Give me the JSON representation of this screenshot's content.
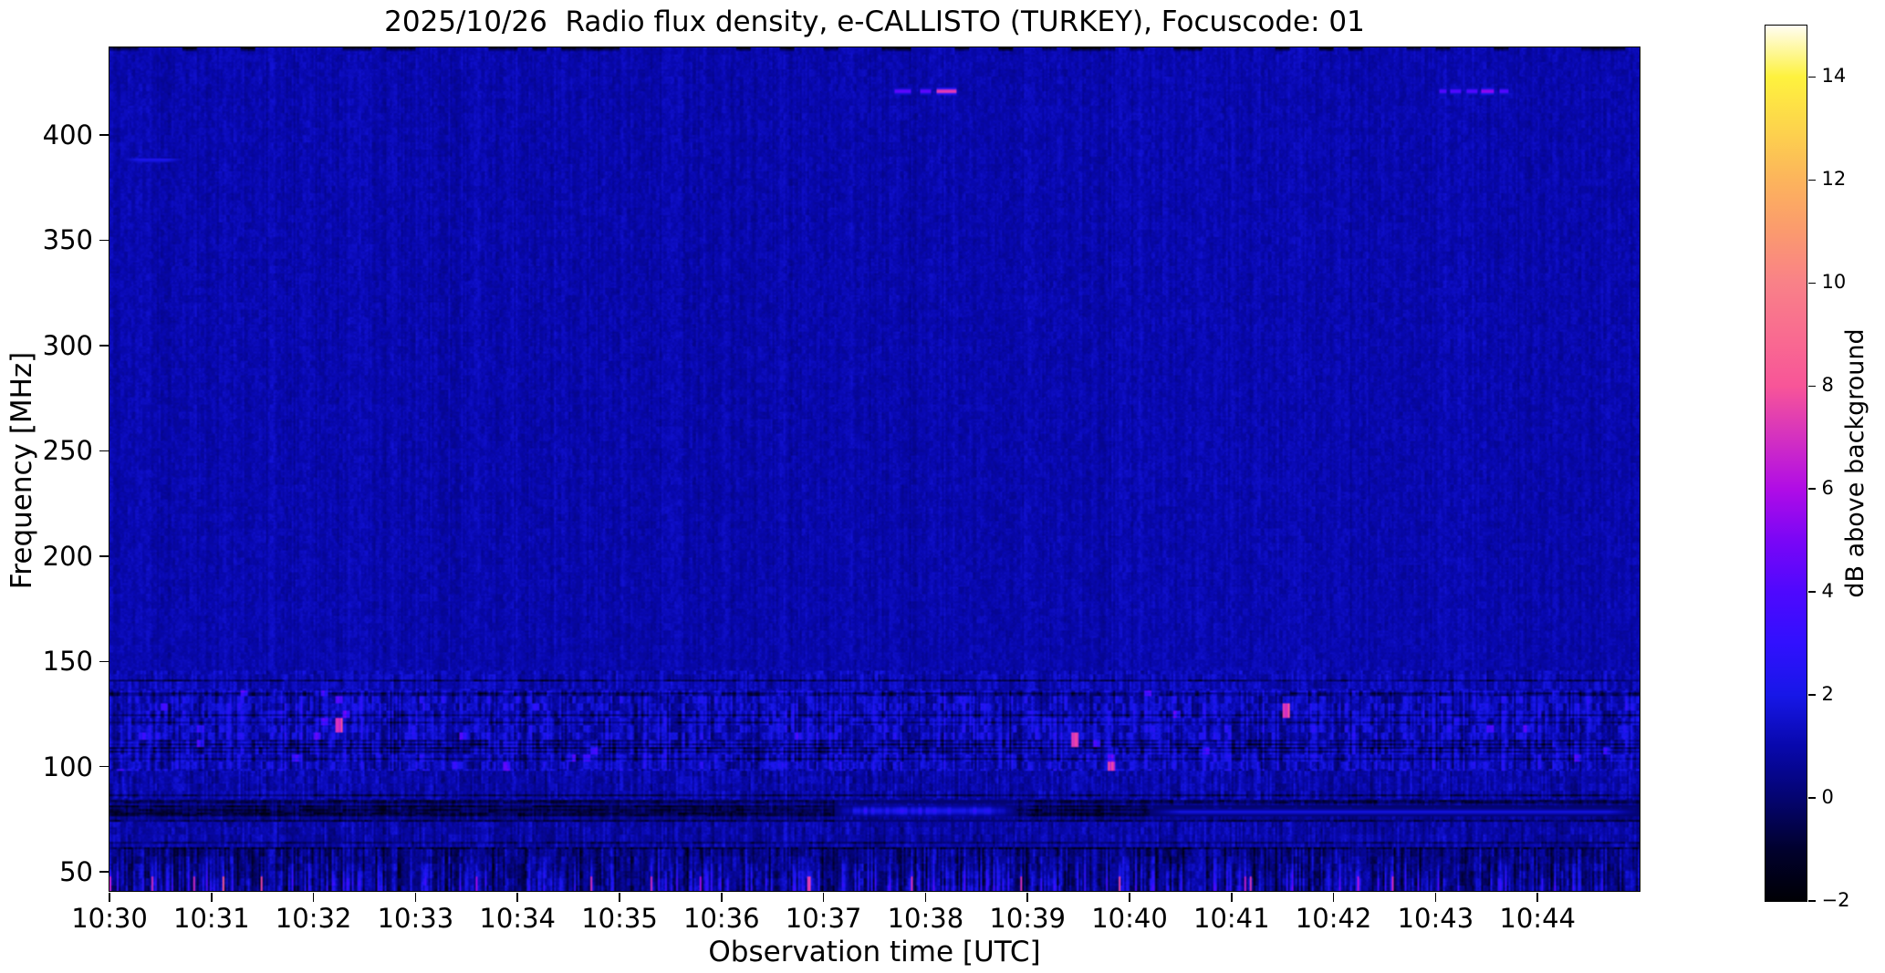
{
  "chart_data": {
    "type": "heatmap",
    "title": "2025/10/26  Radio flux density, e-CALLISTO (TURKEY), Focuscode: 01",
    "xlabel": "Observation time [UTC]",
    "ylabel": "Frequency [MHz]",
    "x_tick_labels": [
      "10:30",
      "10:31",
      "10:32",
      "10:33",
      "10:34",
      "10:35",
      "10:36",
      "10:37",
      "10:38",
      "10:39",
      "10:40",
      "10:41",
      "10:42",
      "10:43",
      "10:44"
    ],
    "x_range_minutes": [
      0,
      15
    ],
    "y_ticks_mhz": [
      400,
      350,
      300,
      250,
      200,
      150,
      100,
      50
    ],
    "y_range_mhz": [
      41.0,
      441.5
    ],
    "grid": false,
    "colorbar": {
      "label": "dB above background",
      "ticks": [
        14,
        12,
        10,
        8,
        6,
        4,
        2,
        0,
        -2
      ],
      "range_db": [
        -2,
        15
      ],
      "colormap_stops": [
        [
          -2,
          "#000005"
        ],
        [
          -1,
          "#01012e"
        ],
        [
          0,
          "#040470"
        ],
        [
          1,
          "#0808ac"
        ],
        [
          2,
          "#1717e8"
        ],
        [
          3,
          "#3110fe"
        ],
        [
          4,
          "#4e08fe"
        ],
        [
          5,
          "#7a06f6"
        ],
        [
          6,
          "#b00ce6"
        ],
        [
          7,
          "#d431c0"
        ],
        [
          8,
          "#f85598"
        ],
        [
          9,
          "#f96c90"
        ],
        [
          10,
          "#f98188"
        ],
        [
          11,
          "#fb9a6e"
        ],
        [
          12,
          "#fcb45c"
        ],
        [
          13,
          "#fdd44c"
        ],
        [
          14,
          "#fef23e"
        ],
        [
          15,
          "#fffdf2"
        ]
      ]
    },
    "background_level_db": 1.0,
    "bands": [
      {
        "f_max": 441.5,
        "f_min": 146,
        "base": 1.02,
        "streak": 0.34,
        "cell": 0.5,
        "pix": 0.42,
        "dark_row_p": 0.0,
        "bottom": false
      },
      {
        "f_max": 146,
        "f_min": 136,
        "base": 1.15,
        "streak": 0.8,
        "cell": 1.0,
        "pix": 0.5,
        "dark_row_p": 0.1,
        "bottom": false
      },
      {
        "f_max": 136,
        "f_min": 98,
        "base": 1.25,
        "streak": 1.5,
        "cell": 1.7,
        "pix": 0.6,
        "dark_row_p": 0.22,
        "bottom": false
      },
      {
        "f_max": 98,
        "f_min": 84,
        "base": 0.95,
        "streak": 0.9,
        "cell": 0.9,
        "pix": 0.5,
        "dark_row_p": 0.08,
        "bottom": false
      },
      {
        "f_max": 84,
        "f_min": 74,
        "base": 0.55,
        "streak": 0.7,
        "cell": 0.8,
        "pix": 0.5,
        "dark_row_p": 0.45,
        "bottom": false
      },
      {
        "f_max": 74,
        "f_min": 62,
        "base": 0.9,
        "streak": 0.9,
        "cell": 0.9,
        "pix": 0.5,
        "dark_row_p": 0.1,
        "bottom": false
      },
      {
        "f_max": 62,
        "f_min": 41,
        "base": 0.55,
        "streak": 1.6,
        "cell": 1.2,
        "pix": 0.6,
        "dark_row_p": 0.12,
        "bottom": true
      }
    ],
    "events": [
      {
        "type": "dash_row",
        "freq_mhz": 420.7,
        "segments_min": [
          [
            7.7,
            7.86
          ],
          [
            7.94,
            8.05
          ],
          [
            8.11,
            8.3
          ]
        ],
        "peak_db": 4.8,
        "core_db": 8.2,
        "core_segment": 2
      },
      {
        "type": "dash_row",
        "freq_mhz": 420.7,
        "segments_min": [
          [
            13.03,
            13.1
          ],
          [
            13.15,
            13.25
          ],
          [
            13.3,
            13.41
          ],
          [
            13.45,
            13.58
          ],
          [
            13.62,
            13.72
          ]
        ],
        "peak_db": 4.5,
        "core_db": 6.0,
        "core_segment": 3
      },
      {
        "type": "bright_line",
        "freq_mhz": 388.0,
        "f_width": 1.6,
        "t_min": [
          0.0,
          0.85
        ],
        "peak_db": 2.6
      },
      {
        "type": "bright_patch",
        "freq_mhz": 79.0,
        "f_width": 4.0,
        "t_min": [
          7.1,
          8.9
        ],
        "peak_db": 2.4
      },
      {
        "type": "bright_line",
        "freq_mhz": 78.5,
        "f_width": 2.0,
        "t_min": [
          10.2,
          15.0
        ],
        "peak_db": 1.9
      }
    ],
    "top_edge_marks": {
      "density": 0.38,
      "depth_db": 2.8
    }
  }
}
